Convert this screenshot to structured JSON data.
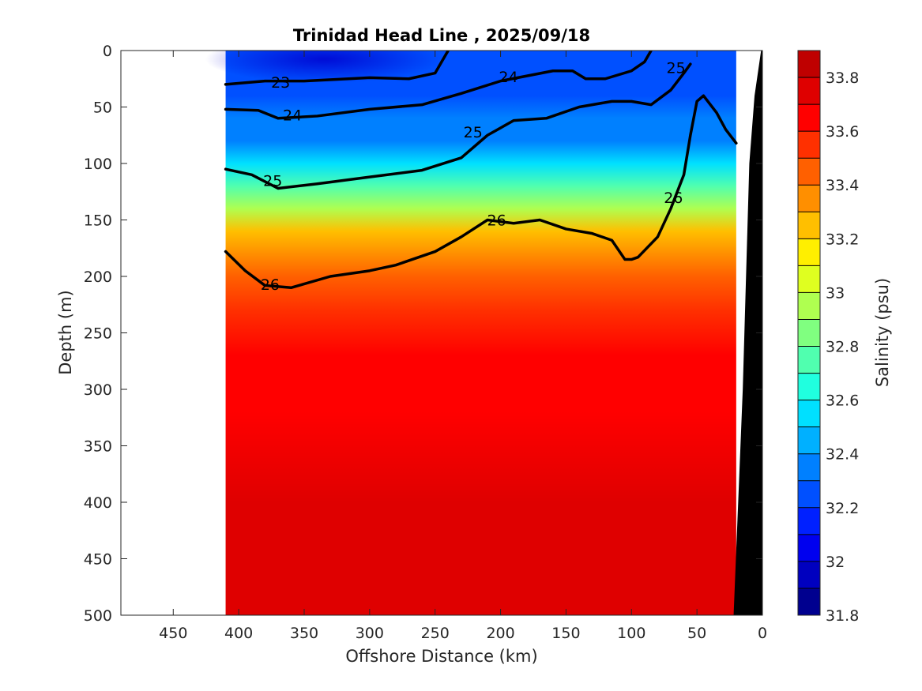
{
  "chart_data": {
    "type": "heatmap",
    "title": "Trinidad Head Line , 2025/09/18",
    "xlabel": "Offshore Distance (km)",
    "ylabel": "Depth (m)",
    "xlim": [
      490,
      0
    ],
    "ylim": [
      0,
      500
    ],
    "x_ticks": [
      "450",
      "400",
      "350",
      "300",
      "250",
      "200",
      "150",
      "100",
      "50",
      "0"
    ],
    "y_ticks": [
      "0",
      "50",
      "100",
      "150",
      "200",
      "250",
      "300",
      "350",
      "400",
      "450",
      "500"
    ],
    "colorbar": {
      "label": "Salinity (psu)",
      "min": 31.8,
      "max": 33.9,
      "step": 0.1,
      "tick_labels": [
        "31.8",
        "32",
        "32.2",
        "32.4",
        "32.6",
        "32.8",
        "33",
        "33.2",
        "33.4",
        "33.6",
        "33.8"
      ],
      "colors": [
        "#00008f",
        "#0000bf",
        "#0000ef",
        "#0020ff",
        "#0050ff",
        "#0080ff",
        "#00b0ff",
        "#00e0ff",
        "#20ffdf",
        "#50ffaf",
        "#80ff80",
        "#afff50",
        "#dfff20",
        "#ffef00",
        "#ffbf00",
        "#ff8f00",
        "#ff6000",
        "#ff3000",
        "#ff0000",
        "#df0000",
        "#bf0000"
      ]
    },
    "data_extent_km": [
      410,
      20
    ],
    "salinity_profile": [
      {
        "depth": 0,
        "value": 32.2
      },
      {
        "depth": 20,
        "value": 32.25
      },
      {
        "depth": 40,
        "value": 32.3
      },
      {
        "depth": 60,
        "value": 32.35
      },
      {
        "depth": 80,
        "value": 32.4
      },
      {
        "depth": 100,
        "value": 32.55
      },
      {
        "depth": 120,
        "value": 32.75
      },
      {
        "depth": 140,
        "value": 33.0
      },
      {
        "depth": 160,
        "value": 33.2
      },
      {
        "depth": 180,
        "value": 33.35
      },
      {
        "depth": 200,
        "value": 33.45
      },
      {
        "depth": 230,
        "value": 33.55
      },
      {
        "depth": 270,
        "value": 33.62
      },
      {
        "depth": 320,
        "value": 33.68
      },
      {
        "depth": 400,
        "value": 33.72
      },
      {
        "depth": 500,
        "value": 33.76
      }
    ],
    "density_contours": [
      {
        "label": "23",
        "bold": true,
        "points": [
          [
            410,
            30
          ],
          [
            380,
            27
          ],
          [
            350,
            27
          ],
          [
            300,
            24
          ],
          [
            270,
            25
          ],
          [
            250,
            20
          ],
          [
            245,
            10
          ],
          [
            240,
            0
          ]
        ]
      },
      {
        "label": "24",
        "bold": true,
        "points": [
          [
            410,
            52
          ],
          [
            385,
            53
          ],
          [
            370,
            60
          ],
          [
            340,
            58
          ],
          [
            300,
            52
          ],
          [
            260,
            48
          ],
          [
            230,
            38
          ],
          [
            200,
            27
          ],
          [
            160,
            18
          ],
          [
            145,
            18
          ],
          [
            135,
            25
          ],
          [
            120,
            25
          ],
          [
            100,
            18
          ],
          [
            90,
            10
          ],
          [
            85,
            0
          ]
        ]
      },
      {
        "label": "25",
        "bold": true,
        "points": [
          [
            410,
            105
          ],
          [
            390,
            110
          ],
          [
            370,
            122
          ],
          [
            340,
            118
          ],
          [
            300,
            112
          ],
          [
            260,
            106
          ],
          [
            230,
            95
          ],
          [
            210,
            75
          ],
          [
            190,
            62
          ],
          [
            165,
            60
          ],
          [
            140,
            50
          ],
          [
            115,
            45
          ],
          [
            100,
            45
          ],
          [
            85,
            48
          ],
          [
            70,
            35
          ],
          [
            60,
            20
          ],
          [
            55,
            12
          ]
        ]
      },
      {
        "label": "26",
        "bold": true,
        "points": [
          [
            410,
            178
          ],
          [
            395,
            195
          ],
          [
            380,
            208
          ],
          [
            360,
            210
          ],
          [
            330,
            200
          ],
          [
            300,
            195
          ],
          [
            280,
            190
          ],
          [
            250,
            178
          ],
          [
            230,
            165
          ],
          [
            210,
            150
          ],
          [
            190,
            153
          ],
          [
            170,
            150
          ],
          [
            150,
            158
          ],
          [
            130,
            162
          ],
          [
            115,
            168
          ],
          [
            105,
            185
          ],
          [
            100,
            185
          ],
          [
            95,
            183
          ],
          [
            80,
            165
          ],
          [
            70,
            140
          ],
          [
            60,
            110
          ],
          [
            55,
            75
          ],
          [
            50,
            45
          ],
          [
            45,
            40
          ],
          [
            35,
            55
          ],
          [
            28,
            70
          ],
          [
            20,
            82
          ]
        ]
      }
    ],
    "contour_labels": [
      {
        "text": "23",
        "x": 368,
        "y": 28
      },
      {
        "text": "24",
        "x": 359,
        "y": 57
      },
      {
        "text": "24",
        "x": 194,
        "y": 23
      },
      {
        "text": "25",
        "x": 374,
        "y": 115
      },
      {
        "text": "25",
        "x": 221,
        "y": 72
      },
      {
        "text": "25",
        "x": 66,
        "y": 15
      },
      {
        "text": "26",
        "x": 376,
        "y": 207
      },
      {
        "text": "26",
        "x": 203,
        "y": 150
      },
      {
        "text": "26",
        "x": 68,
        "y": 130
      }
    ]
  }
}
